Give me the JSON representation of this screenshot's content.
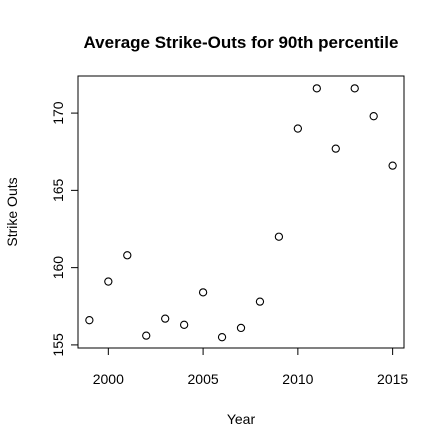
{
  "chart_data": {
    "type": "scatter",
    "title": "Average Strike-Outs for 90th percentile",
    "xlabel": "Year",
    "ylabel": "Strike Outs",
    "xlim": [
      1998.4,
      2015.6
    ],
    "ylim": [
      154.8,
      172.4
    ],
    "x_ticks": [
      2000,
      2005,
      2010,
      2015
    ],
    "y_ticks": [
      155,
      160,
      165,
      170
    ],
    "grid": false,
    "legend": "none",
    "points": [
      {
        "x": 1999,
        "y": 156.6
      },
      {
        "x": 2000,
        "y": 159.1
      },
      {
        "x": 2001,
        "y": 160.8
      },
      {
        "x": 2002,
        "y": 155.6
      },
      {
        "x": 2003,
        "y": 156.7
      },
      {
        "x": 2004,
        "y": 156.3
      },
      {
        "x": 2005,
        "y": 158.4
      },
      {
        "x": 2006,
        "y": 155.5
      },
      {
        "x": 2007,
        "y": 156.1
      },
      {
        "x": 2008,
        "y": 157.8
      },
      {
        "x": 2009,
        "y": 162.0
      },
      {
        "x": 2010,
        "y": 169.0
      },
      {
        "x": 2011,
        "y": 171.6
      },
      {
        "x": 2012,
        "y": 167.7
      },
      {
        "x": 2013,
        "y": 171.6
      },
      {
        "x": 2014,
        "y": 169.8
      },
      {
        "x": 2015,
        "y": 166.6
      }
    ]
  }
}
